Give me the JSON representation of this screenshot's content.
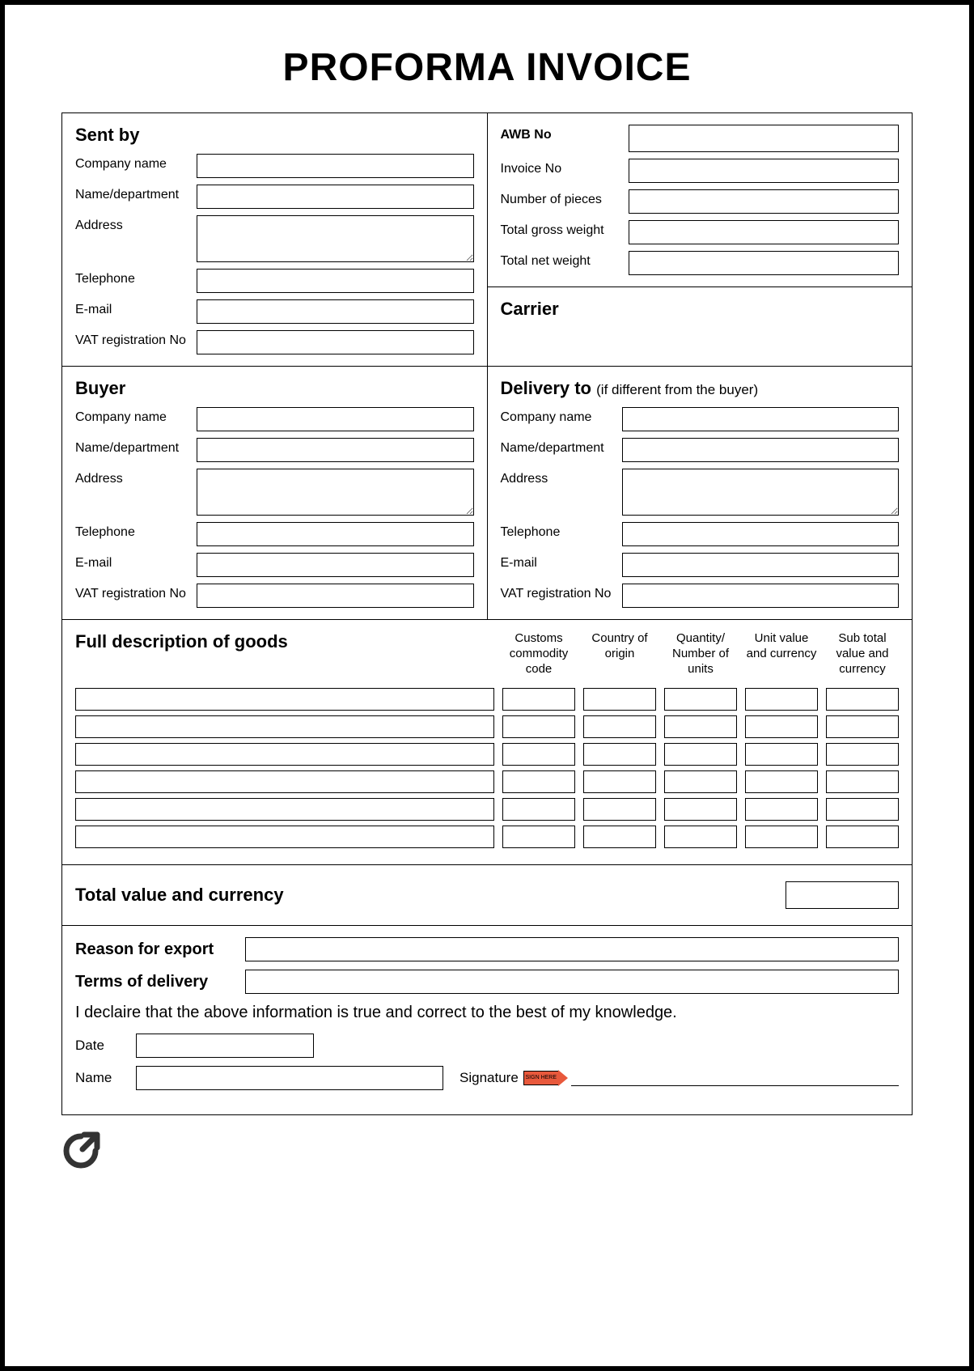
{
  "title": "PROFORMA INVOICE",
  "sent_by": {
    "title": "Sent by",
    "company": "Company name",
    "dept": "Name/department",
    "address": "Address",
    "tel": "Telephone",
    "email": "E-mail",
    "vat": "VAT registration No"
  },
  "shipment": {
    "awb": "AWB No",
    "invoice": "Invoice No",
    "pieces": "Number of pieces",
    "gross": "Total gross weight",
    "net": "Total net weight"
  },
  "carrier": {
    "title": "Carrier"
  },
  "buyer": {
    "title": "Buyer",
    "company": "Company name",
    "dept": "Name/department",
    "address": "Address",
    "tel": "Telephone",
    "email": "E-mail",
    "vat": "VAT registration No"
  },
  "delivery": {
    "title": "Delivery to",
    "sub": "(if different from the buyer)",
    "company": "Company name",
    "dept": "Name/department",
    "address": "Address",
    "tel": "Telephone",
    "email": "E-mail",
    "vat": "VAT registration No"
  },
  "goods": {
    "title": "Full description of goods",
    "cols": {
      "c1": "Customs commodity code",
      "c2": "Country of origin",
      "c3": "Quantity/ Number of units",
      "c4": "Unit value and currency",
      "c5": "Sub total value and currency"
    },
    "row_count": 6
  },
  "total": {
    "label": "Total value and currency"
  },
  "bottom": {
    "reason": "Reason for export",
    "terms": "Terms of delivery",
    "declare": "I declaire that the above information is true and correct to the best of my knowledge.",
    "date": "Date",
    "name": "Name",
    "signature": "Signature",
    "sign_here": "SIGN HERE"
  },
  "style": {
    "border_color": "#000000",
    "background": "#ffffff",
    "accent_arrow": "#e8593c",
    "title_fontsize": 48,
    "section_title_fontsize": 22,
    "label_fontsize": 16,
    "field_height": 30
  }
}
